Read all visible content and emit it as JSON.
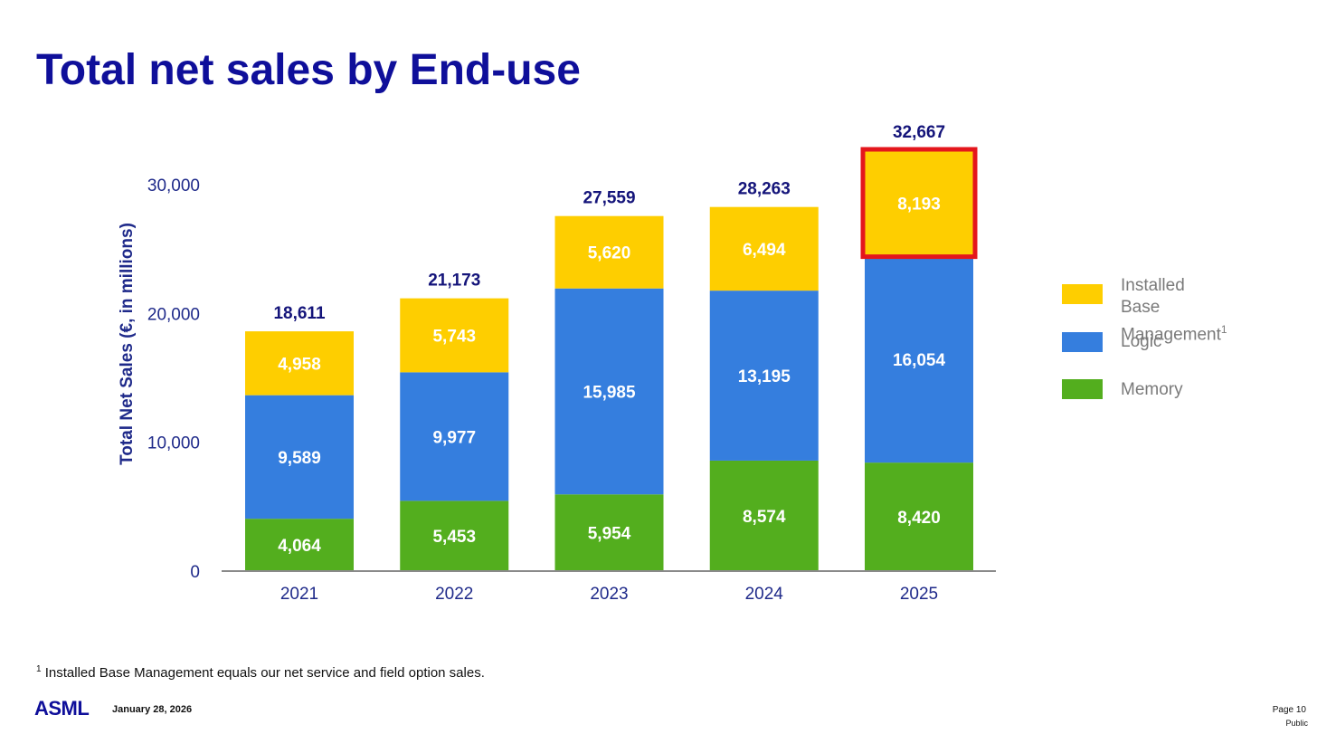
{
  "title": "Total net sales by End-use",
  "colors": {
    "title": "#0f0f9a",
    "installed_base": "#fece00",
    "logic": "#357ede",
    "memory": "#53ae1e",
    "highlight": "#e4161c",
    "total_label": "#14147a",
    "axis_text": "#1f2a8a",
    "legend_text": "#7a7a7a"
  },
  "chart_data": {
    "type": "bar",
    "stacked": true,
    "ylabel": "Total Net Sales (€, in millions)",
    "xlabel": "",
    "ylim": [
      0,
      32667
    ],
    "yticks": [
      "0",
      "10,000",
      "20,000",
      "30,000"
    ],
    "ytick_values": [
      0,
      10000,
      20000,
      30000
    ],
    "grid": false,
    "legend_position": "right",
    "categories": [
      "2021",
      "2022",
      "2023",
      "2024",
      "2025"
    ],
    "series": [
      {
        "name": "Memory",
        "values": [
          4064,
          5453,
          5954,
          8574,
          8420
        ],
        "labels": [
          "4,064",
          "5,453",
          "5,954",
          "8,574",
          "8,420"
        ]
      },
      {
        "name": "Logic",
        "values": [
          9589,
          9977,
          15985,
          13195,
          16054
        ],
        "labels": [
          "9,589",
          "9,977",
          "15,985",
          "13,195",
          "16,054"
        ]
      },
      {
        "name": "Installed Base Management",
        "values": [
          4958,
          5743,
          5620,
          6494,
          8193
        ],
        "labels": [
          "4,958",
          "5,743",
          "5,620",
          "6,494",
          "8,193"
        ]
      }
    ],
    "totals": [
      18611,
      21173,
      27559,
      28263,
      32667
    ],
    "total_labels": [
      "18,611",
      "21,173",
      "27,559",
      "28,263",
      "32,667"
    ],
    "highlighted": {
      "category": "2025",
      "series": "Installed Base Management"
    }
  },
  "legend": [
    {
      "label": "Installed Base",
      "label2": "Management",
      "sup": "1",
      "color": "#fece00"
    },
    {
      "label": "Logic",
      "color": "#357ede"
    },
    {
      "label": "Memory",
      "color": "#53ae1e"
    }
  ],
  "footnote": {
    "mark": "1",
    "text": " Installed Base Management equals our net service and field option sales."
  },
  "footer": {
    "logo": "ASML",
    "date": "January 28, 2026",
    "page": "Page 10",
    "classification": "Public"
  }
}
